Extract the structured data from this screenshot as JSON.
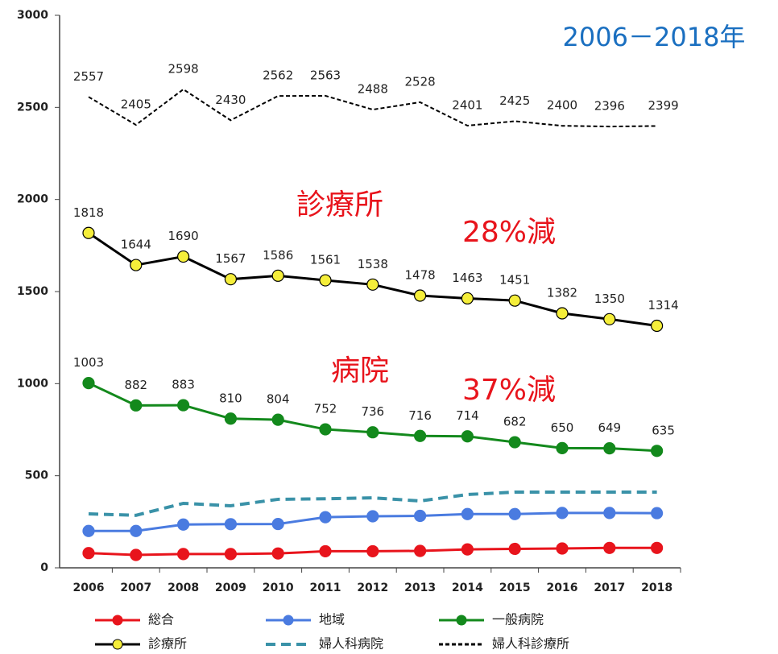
{
  "chart_data": {
    "type": "line",
    "categories": [
      "2006",
      "2007",
      "2008",
      "2009",
      "2010",
      "2011",
      "2012",
      "2013",
      "2014",
      "2015",
      "2016",
      "2017",
      "2018"
    ],
    "ylim": [
      0,
      3000
    ],
    "yticks": [
      0,
      500,
      1000,
      1500,
      2000,
      2500,
      3000
    ],
    "series": [
      {
        "name": "総合",
        "color": "#e8141c",
        "marker_color": "#e8141c",
        "values": [
          80,
          70,
          75,
          75,
          78,
          90,
          90,
          92,
          100,
          103,
          105,
          108,
          108
        ]
      },
      {
        "name": "地域",
        "color": "#4a7be0",
        "marker_color": "#4a7be0",
        "values": [
          200,
          200,
          235,
          237,
          238,
          275,
          280,
          282,
          292,
          292,
          298,
          298,
          297
        ]
      },
      {
        "name": "一般病院",
        "color": "#13891c",
        "marker_color": "#13891c",
        "data_labels": true,
        "values": [
          1003,
          882,
          883,
          810,
          804,
          752,
          736,
          716,
          714,
          682,
          650,
          649,
          635
        ]
      },
      {
        "name": "診療所",
        "color": "#000000",
        "marker_color": "#f5ee3a",
        "data_labels": true,
        "values": [
          1818,
          1644,
          1690,
          1567,
          1586,
          1561,
          1538,
          1478,
          1463,
          1451,
          1382,
          1350,
          1314
        ]
      },
      {
        "name": "婦人科病院",
        "color": "#3a92a8",
        "style": "dashed",
        "values": [
          293,
          285,
          350,
          337,
          372,
          375,
          380,
          363,
          398,
          411,
          411,
          411,
          411
        ]
      },
      {
        "name": "婦人科診療所",
        "color": "#000000",
        "style": "dotted",
        "data_labels": true,
        "values": [
          2557,
          2405,
          2598,
          2430,
          2562,
          2563,
          2488,
          2528,
          2401,
          2425,
          2400,
          2396,
          2399
        ]
      }
    ],
    "annotations": [
      {
        "text": "2006－2018年",
        "color": "#1a6fc0"
      },
      {
        "text": "診療所",
        "color": "#e8141c"
      },
      {
        "text": "28%減",
        "color": "#e8141c"
      },
      {
        "text": "病院",
        "color": "#e8141c"
      },
      {
        "text": "37%減",
        "color": "#e8141c"
      }
    ]
  }
}
